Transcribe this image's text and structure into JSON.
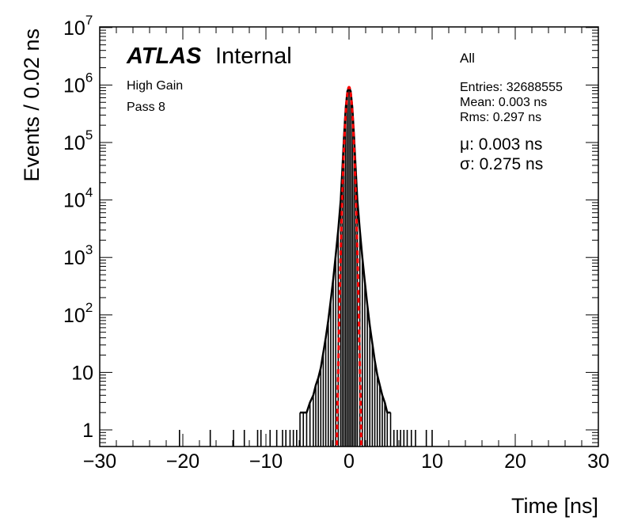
{
  "chart_data": {
    "type": "histogram",
    "xlabel": "Time [ns]",
    "ylabel": "Events / 0.02 ns",
    "xlim": [
      -30,
      30
    ],
    "ylim": [
      0.5,
      10000000
    ],
    "yscale": "log",
    "bin_width": 0.02,
    "x_ticks": [
      -30,
      -20,
      -10,
      0,
      10,
      20,
      30
    ],
    "x_tick_labels": [
      "−30",
      "−20",
      "−10",
      "0",
      "10",
      "20",
      "30"
    ],
    "y_ticks": [
      1,
      10,
      100,
      1000,
      10000,
      100000,
      1000000,
      10000000
    ],
    "grid": false,
    "series": [
      {
        "name": "All",
        "style": "histogram",
        "color": "#000000",
        "points": [
          [
            -20.4,
            1
          ],
          [
            -16.7,
            1
          ],
          [
            -13.9,
            1
          ],
          [
            -12.6,
            1
          ],
          [
            -11.0,
            1
          ],
          [
            -10.6,
            1
          ],
          [
            -9.5,
            1
          ],
          [
            -8.7,
            1
          ],
          [
            -8.0,
            1
          ],
          [
            -7.6,
            1
          ],
          [
            -7.1,
            1
          ],
          [
            -6.7,
            1
          ],
          [
            -6.3,
            1
          ],
          [
            -5.9,
            2
          ],
          [
            -5.5,
            2
          ],
          [
            -5.1,
            2
          ],
          [
            -4.7,
            3
          ],
          [
            -4.3,
            4
          ],
          [
            -4.0,
            6
          ],
          [
            -3.7,
            8
          ],
          [
            -3.4,
            12
          ],
          [
            -3.1,
            22
          ],
          [
            -2.8,
            40
          ],
          [
            -2.5,
            80
          ],
          [
            -2.2,
            180
          ],
          [
            -1.9,
            420
          ],
          [
            -1.6,
            1100
          ],
          [
            -1.3,
            3000
          ],
          [
            -1.0,
            10000
          ],
          [
            -0.8,
            35000
          ],
          [
            -0.6,
            130000
          ],
          [
            -0.4,
            400000
          ],
          [
            -0.2,
            780000
          ],
          [
            0.0,
            900000
          ],
          [
            0.2,
            780000
          ],
          [
            0.4,
            400000
          ],
          [
            0.6,
            130000
          ],
          [
            0.8,
            35000
          ],
          [
            1.0,
            10000
          ],
          [
            1.3,
            3000
          ],
          [
            1.6,
            1000
          ],
          [
            1.9,
            380
          ],
          [
            2.2,
            150
          ],
          [
            2.5,
            65
          ],
          [
            2.8,
            32
          ],
          [
            3.1,
            16
          ],
          [
            3.4,
            9
          ],
          [
            3.7,
            6
          ],
          [
            4.0,
            4
          ],
          [
            4.3,
            3
          ],
          [
            4.6,
            2
          ],
          [
            5.0,
            2
          ],
          [
            5.4,
            1
          ],
          [
            5.8,
            1
          ],
          [
            6.2,
            1
          ],
          [
            6.6,
            1
          ],
          [
            7.0,
            1
          ],
          [
            7.5,
            1
          ],
          [
            8.0,
            1
          ],
          [
            9.3,
            1
          ],
          [
            10.0,
            1
          ]
        ]
      },
      {
        "name": "fit",
        "style": "dashed",
        "color": "#ff0000",
        "mu": 0.003,
        "sigma": 0.275,
        "peak": 920000
      }
    ]
  },
  "labels": {
    "atlas": "ATLAS",
    "internal": "Internal",
    "gain": "High Gain",
    "pass": "Pass 8",
    "stats_title": "All",
    "entries": "Entries: 32688555",
    "mean": "Mean: 0.003 ns",
    "rms": "Rms: 0.297 ns",
    "mu": "μ: 0.003 ns",
    "sigma": "σ: 0.275 ns"
  }
}
